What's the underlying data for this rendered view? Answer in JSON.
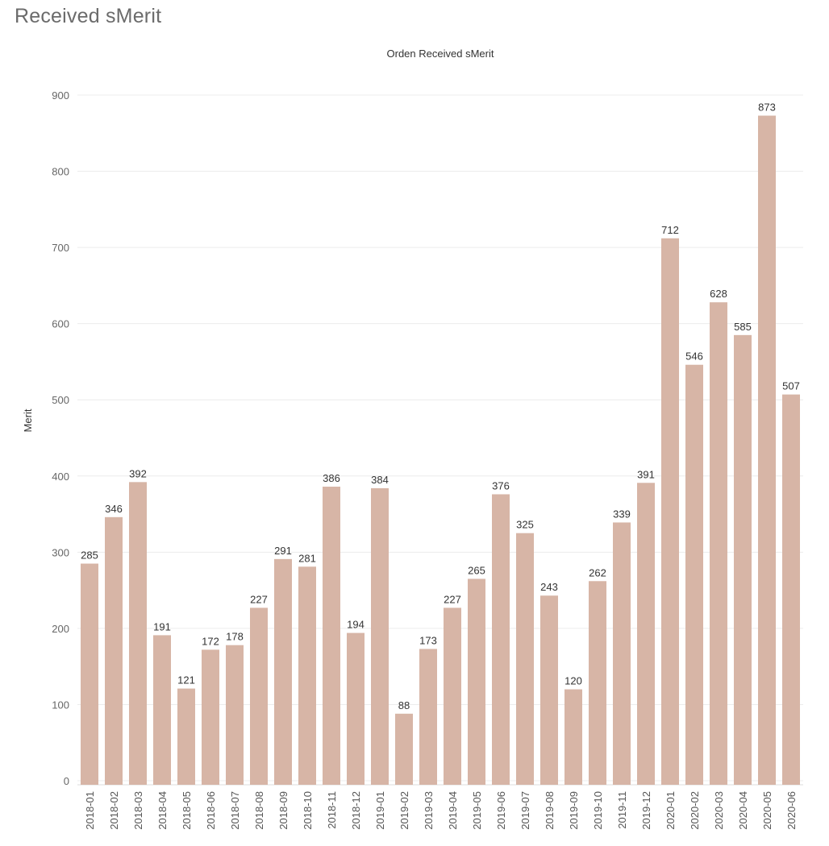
{
  "page": {
    "title": "Received sMerit"
  },
  "chart_data": {
    "type": "bar",
    "title": "Orden Received sMerit",
    "xlabel": "",
    "ylabel": "Merit",
    "ylim": [
      0,
      900
    ],
    "yticks": [
      0,
      100,
      200,
      300,
      400,
      500,
      600,
      700,
      800,
      900
    ],
    "grid": true,
    "bar_color": "#d7b5a6",
    "categories": [
      "2018-01",
      "2018-02",
      "2018-03",
      "2018-04",
      "2018-05",
      "2018-06",
      "2018-07",
      "2018-08",
      "2018-09",
      "2018-10",
      "2018-11",
      "2018-12",
      "2019-01",
      "2019-02",
      "2019-03",
      "2019-04",
      "2019-05",
      "2019-06",
      "2019-07",
      "2019-08",
      "2019-09",
      "2019-10",
      "2019-11",
      "2019-12",
      "2020-01",
      "2020-02",
      "2020-03",
      "2020-04",
      "2020-05",
      "2020-06"
    ],
    "values": [
      285,
      346,
      392,
      191,
      121,
      172,
      178,
      227,
      291,
      281,
      386,
      194,
      384,
      88,
      173,
      227,
      265,
      376,
      325,
      243,
      120,
      262,
      339,
      391,
      712,
      546,
      628,
      585,
      873,
      507
    ]
  }
}
